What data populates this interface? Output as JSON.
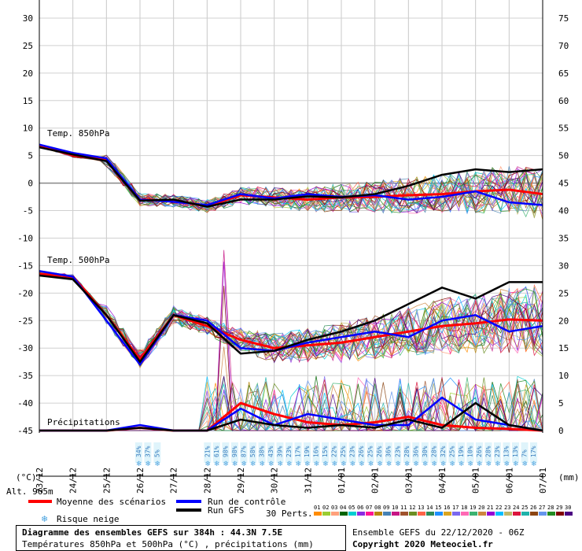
{
  "chart_data": {
    "type": "line",
    "left_axis": {
      "unit": "(°C)",
      "range": [
        -45,
        30
      ],
      "ticks": [
        30,
        25,
        20,
        15,
        10,
        5,
        0,
        -5,
        -10,
        -15,
        -20,
        -25,
        -30,
        -35,
        -40,
        -45
      ]
    },
    "right_axis": {
      "unit": "(mm)",
      "range": [
        0,
        75
      ],
      "ticks": [
        75,
        70,
        65,
        60,
        55,
        50,
        45,
        40,
        35,
        30,
        25,
        20,
        15,
        10,
        5,
        0
      ]
    },
    "altitude": "Alt. 965m",
    "x_categories": [
      "23/12",
      "24/12",
      "25/12",
      "26/12",
      "27/12",
      "28/12",
      "29/12",
      "30/12",
      "31/12",
      "01/01",
      "02/01",
      "03/01",
      "04/01",
      "05/01",
      "06/01",
      "07/01"
    ],
    "section_labels": {
      "t850": "Temp. 850hPa",
      "t500": "Temp. 500hPa",
      "precip": "Précipitations"
    },
    "series": [
      {
        "name": "Moyenne des scénarios",
        "color": "#ff0000",
        "t850": [
          6.8,
          5,
          4.2,
          -3,
          -3.2,
          -4.2,
          -2.2,
          -2.6,
          -3,
          -2.6,
          -2.5,
          -2.2,
          -2,
          -1.5,
          -1.2,
          -2
        ],
        "t500": [
          -16.5,
          -17,
          -24,
          -32,
          -24,
          -26,
          -28.5,
          -30,
          -29.5,
          -29,
          -28,
          -27,
          -26,
          -25.5,
          -24.8,
          -25
        ],
        "precip": [
          0,
          0,
          0,
          0.5,
          0,
          0,
          5,
          3,
          1.5,
          1,
          1.5,
          2.5,
          1,
          0.5,
          0.3,
          0
        ]
      },
      {
        "name": "Run de contrôle",
        "color": "#0000ff",
        "t850": [
          7,
          5.5,
          4.5,
          -3,
          -3.4,
          -4,
          -2,
          -2.8,
          -2,
          -2.5,
          -2.2,
          -3,
          -2.5,
          -1.5,
          -3.5,
          -4
        ],
        "t500": [
          -16,
          -17,
          -25,
          -33,
          -24,
          -25,
          -30,
          -30.5,
          -29,
          -28,
          -27,
          -28,
          -25,
          -24,
          -27,
          -26
        ],
        "precip": [
          0,
          0,
          0,
          1,
          0,
          0,
          4,
          1,
          3,
          2,
          1,
          1,
          6,
          2,
          1,
          0
        ]
      },
      {
        "name": "Run GFS",
        "color": "#000000",
        "t850": [
          6.5,
          5.2,
          4,
          -3.2,
          -3,
          -4.3,
          -3,
          -3,
          -2.4,
          -2.6,
          -2,
          -0.5,
          1.5,
          2.5,
          2,
          2.5
        ],
        "t500": [
          -16.8,
          -17.5,
          -24,
          -32.5,
          -24,
          -25.5,
          -31,
          -30.5,
          -28.5,
          -27,
          -25,
          -22,
          -19,
          -21,
          -18,
          -18
        ],
        "precip": [
          0,
          0,
          0,
          0.5,
          0,
          0,
          2,
          1,
          0.5,
          1,
          0.5,
          2,
          0.5,
          5,
          1,
          0
        ]
      }
    ],
    "perturbations_label": "30 Perts.",
    "perturbation_ids": [
      "01",
      "02",
      "03",
      "04",
      "05",
      "06",
      "07",
      "08",
      "09",
      "10",
      "11",
      "12",
      "13",
      "14",
      "15",
      "16",
      "17",
      "18",
      "19",
      "20",
      "21",
      "22",
      "23",
      "24",
      "25",
      "26",
      "27",
      "28",
      "29",
      "30"
    ],
    "perturbation_colors": [
      "#ff8c00",
      "#9acd32",
      "#ffa07a",
      "#006400",
      "#00ced1",
      "#8a2be2",
      "#ff1493",
      "#b8860b",
      "#4682b4",
      "#c71585",
      "#a0522d",
      "#6b8e23",
      "#ff6347",
      "#2e8b57",
      "#1e90ff",
      "#daa520",
      "#7b68ee",
      "#ff69b4",
      "#3cb371",
      "#cd853f",
      "#9400d3",
      "#00bfff",
      "#bdb76b",
      "#dc143c",
      "#20b2aa",
      "#8b4513",
      "#6495ed",
      "#228b22",
      "#800000",
      "#4b0082"
    ],
    "snow_risk_label": "Risque neige",
    "snow_risk": [
      {
        "x": 2.95,
        "label": "34%"
      },
      {
        "x": 3.22,
        "label": "37%"
      },
      {
        "x": 3.5,
        "label": "5%"
      },
      {
        "x": 5.0,
        "label": "21%"
      },
      {
        "x": 5.27,
        "label": "61%"
      },
      {
        "x": 5.54,
        "label": "98%"
      },
      {
        "x": 5.81,
        "label": "98%"
      },
      {
        "x": 6.08,
        "label": "87%"
      },
      {
        "x": 6.35,
        "label": "58%"
      },
      {
        "x": 6.62,
        "label": "38%"
      },
      {
        "x": 6.89,
        "label": "43%"
      },
      {
        "x": 7.16,
        "label": "39%"
      },
      {
        "x": 7.43,
        "label": "23%"
      },
      {
        "x": 7.7,
        "label": "17%"
      },
      {
        "x": 7.97,
        "label": "19%"
      },
      {
        "x": 8.24,
        "label": "16%"
      },
      {
        "x": 8.51,
        "label": "15%"
      },
      {
        "x": 8.78,
        "label": "22%"
      },
      {
        "x": 9.05,
        "label": "25%"
      },
      {
        "x": 9.32,
        "label": "23%"
      },
      {
        "x": 9.59,
        "label": "26%"
      },
      {
        "x": 9.86,
        "label": "25%"
      },
      {
        "x": 10.13,
        "label": "26%"
      },
      {
        "x": 10.4,
        "label": "36%"
      },
      {
        "x": 10.67,
        "label": "23%"
      },
      {
        "x": 10.94,
        "label": "28%"
      },
      {
        "x": 11.21,
        "label": "36%"
      },
      {
        "x": 11.48,
        "label": "30%"
      },
      {
        "x": 11.75,
        "label": "28%"
      },
      {
        "x": 12.02,
        "label": "32%"
      },
      {
        "x": 12.29,
        "label": "25%"
      },
      {
        "x": 12.56,
        "label": "19%"
      },
      {
        "x": 12.83,
        "label": "10%"
      },
      {
        "x": 13.1,
        "label": "26%"
      },
      {
        "x": 13.37,
        "label": "28%"
      },
      {
        "x": 13.64,
        "label": "23%"
      },
      {
        "x": 13.91,
        "label": "13%"
      },
      {
        "x": 14.18,
        "label": "13%"
      },
      {
        "x": 14.45,
        "label": "7%"
      },
      {
        "x": 14.72,
        "label": "17%"
      }
    ]
  },
  "footer": {
    "title": "Diagramme des ensembles GEFS sur 384h : 44.3N 7.5E",
    "subtitle": "Températures 850hPa et 500hPa (°C) , précipitations (mm)",
    "ensemble": "Ensemble GEFS du 22/12/2020 - 06Z",
    "copyright": "Copyright 2020 Meteociel.fr"
  }
}
